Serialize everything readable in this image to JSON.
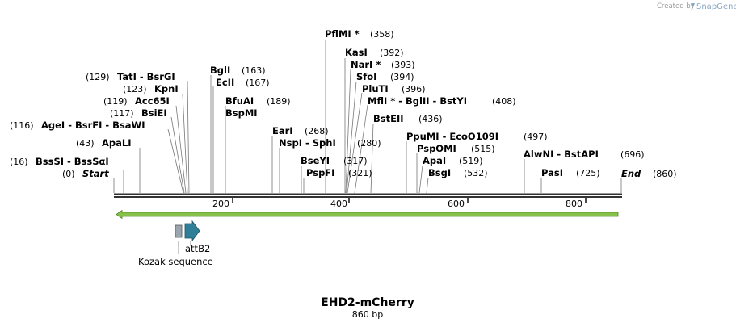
{
  "credit": {
    "prefix": "Created by",
    "brand": "SnapGene"
  },
  "construct": {
    "name": "EHD2-mCherry",
    "length_label": "860 bp",
    "length": 860
  },
  "ends": {
    "start_label": "Start",
    "start_pos": "(0)",
    "end_label": "End",
    "end_pos": "(860)"
  },
  "ruler_ticks": [
    "200",
    "400",
    "600",
    "800"
  ],
  "sites": [
    {
      "name": "BssSI - BssSαI",
      "pos": "(16)"
    },
    {
      "name": "ApaLI",
      "pos": "(43)"
    },
    {
      "name": "AgeI - BsrFI - BsaWI",
      "pos": "(116)"
    },
    {
      "name": "BsiEI",
      "pos": "(117)"
    },
    {
      "name": "Acc65I",
      "pos": "(119)"
    },
    {
      "name": "KpnI",
      "pos": "(123)"
    },
    {
      "name": "TatI - BsrGI",
      "pos": "(129)"
    },
    {
      "name": "BglI",
      "pos": "(163)"
    },
    {
      "name": "EcII",
      "pos": "(167)"
    },
    {
      "name": "BfuAI",
      "pos": "(189)"
    },
    {
      "name": "BspMI",
      "pos": ""
    },
    {
      "name": "EarI",
      "pos": "(268)"
    },
    {
      "name": "NspI - SphI",
      "pos": "(280)"
    },
    {
      "name": "BseYI",
      "pos": "(317)"
    },
    {
      "name": "PspFI",
      "pos": "(321)"
    },
    {
      "name": "PflMI *",
      "pos": "(358)"
    },
    {
      "name": "KasI",
      "pos": "(392)"
    },
    {
      "name": "NarI *",
      "pos": "(393)"
    },
    {
      "name": "SfoI",
      "pos": "(394)"
    },
    {
      "name": "PluTI",
      "pos": "(396)"
    },
    {
      "name": "MflI * - BglII - BstYI",
      "pos": "(408)"
    },
    {
      "name": "BstEII",
      "pos": "(436)"
    },
    {
      "name": "PpuMI - EcoO109I",
      "pos": "(497)"
    },
    {
      "name": "PspOMI",
      "pos": "(515)"
    },
    {
      "name": "ApaI",
      "pos": "(519)"
    },
    {
      "name": "BsgI",
      "pos": "(532)"
    },
    {
      "name": "AlwNI - BstAPI",
      "pos": "(696)"
    },
    {
      "name": "PasI",
      "pos": "(725)"
    }
  ],
  "features": {
    "orf_color": "#86c24a",
    "kozak_label": "Kozak sequence",
    "kozak_color": "#9aa5ad",
    "attb2_label": "attB2",
    "attb2_color": "#2f7f96"
  }
}
